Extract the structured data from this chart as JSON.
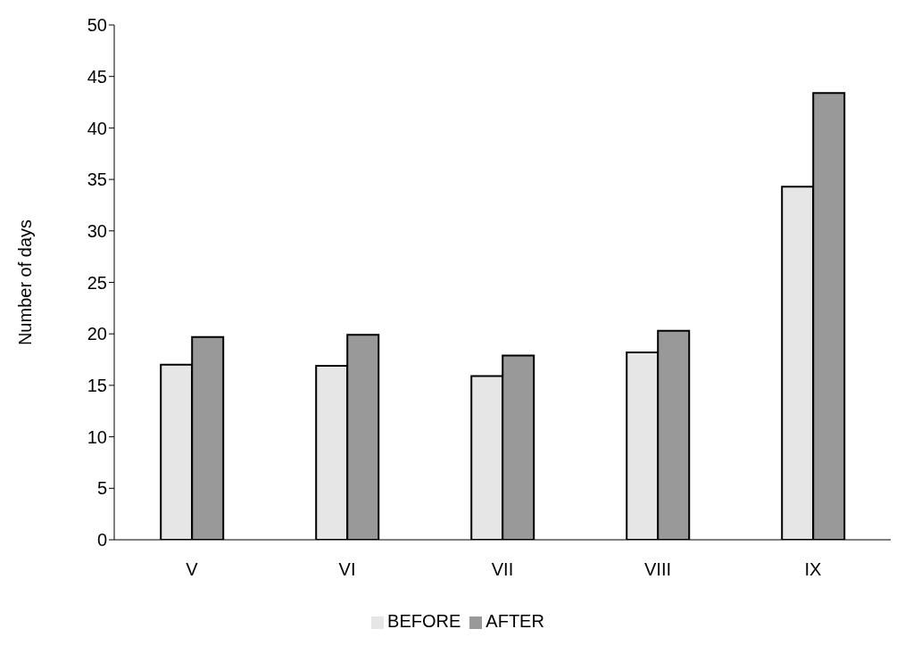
{
  "chart_data": {
    "type": "bar",
    "ylabel": "Number of days",
    "categories": [
      "V",
      "VI",
      "VII",
      "VIII",
      "IX"
    ],
    "series": [
      {
        "name": "BEFORE",
        "color": "#e6e6e6",
        "values": [
          17.0,
          16.9,
          15.9,
          18.2,
          34.3
        ]
      },
      {
        "name": "AFTER",
        "color": "#999999",
        "values": [
          19.7,
          19.9,
          17.9,
          20.3,
          43.4
        ]
      }
    ],
    "ylim": [
      0,
      50
    ],
    "yticks": [
      0,
      5,
      10,
      15,
      20,
      25,
      30,
      35,
      40,
      45,
      50
    ],
    "grid": false,
    "legend": "bottom"
  }
}
